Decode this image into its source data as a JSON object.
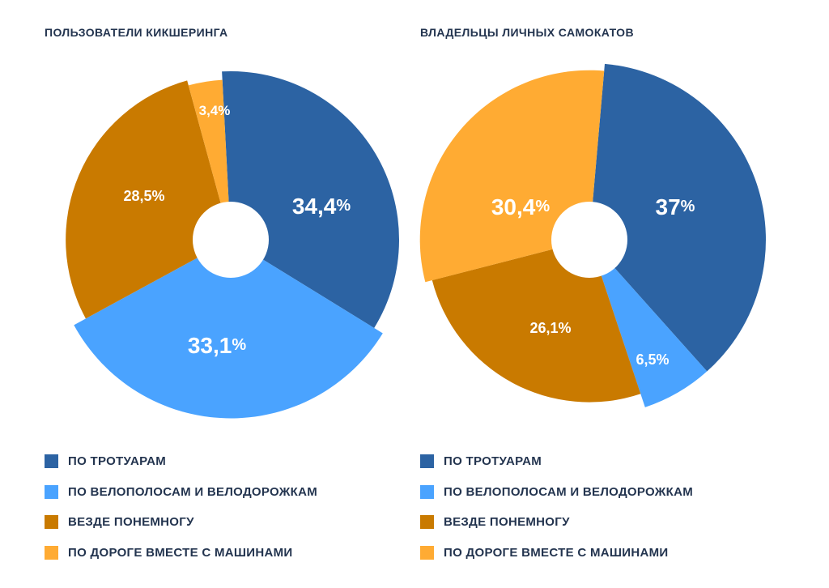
{
  "colors": {
    "sidewalk": "#2c63a3",
    "bikelane": "#4aa3ff",
    "everywhere": "#c97a00",
    "road": "#ffab33",
    "text": "#23344f"
  },
  "chart_data": [
    {
      "type": "pie",
      "title": "ПОЛЬЗОВАТЕЛИ КИКШЕРИНГА",
      "slices": [
        {
          "key": "sidewalk",
          "label": "ПО ТРОТУАРАМ",
          "value": 34.4,
          "number": "34,4",
          "unit": "%",
          "size": "large"
        },
        {
          "key": "bikelane",
          "label": "ПО ВЕЛОПОЛОСАМ И ВЕЛОДОРОЖКАМ",
          "value": 33.1,
          "number": "33,1",
          "unit": "%",
          "size": "large"
        },
        {
          "key": "everywhere",
          "label": "ВЕЗДЕ ПОНЕМНОГУ",
          "value": 28.5,
          "number": "28,5%",
          "unit": "",
          "size": "small"
        },
        {
          "key": "road",
          "label": "ПО ДОРОГЕ ВМЕСТЕ С МАШИНАМИ",
          "value": 3.4,
          "number": "3,4%",
          "unit": "",
          "size": "small"
        }
      ]
    },
    {
      "type": "pie",
      "title": "ВЛАДЕЛЬЦЫ ЛИЧНЫХ САМОКАТОВ",
      "slices": [
        {
          "key": "sidewalk",
          "label": "ПО ТРОТУАРАМ",
          "value": 37,
          "number": "37",
          "unit": "%",
          "size": "large"
        },
        {
          "key": "bikelane",
          "label": "ПО ВЕЛОПОЛОСАМ И ВЕЛОДОРОЖКАМ",
          "value": 6.5,
          "number": "6,5%",
          "unit": "",
          "size": "small"
        },
        {
          "key": "everywhere",
          "label": "ВЕЗДЕ ПОНЕМНОГУ",
          "value": 26.1,
          "number": "26,1%",
          "unit": "",
          "size": "small"
        },
        {
          "key": "road",
          "label": "ПО ДОРОГЕ ВМЕСТЕ С МАШИНАМИ",
          "value": 30.4,
          "number": "30,4",
          "unit": "%",
          "size": "large"
        }
      ]
    }
  ],
  "legend": {
    "left": [
      {
        "key": "sidewalk",
        "label": "ПО ТРОТУАРАМ"
      },
      {
        "key": "bikelane",
        "label": "ПО ВЕЛОПОЛОСАМ И ВЕЛОДОРОЖКАМ"
      },
      {
        "key": "everywhere",
        "label": "ВЕЗДЕ ПОНЕМНОГУ"
      },
      {
        "key": "road",
        "label": "ПО ДОРОГЕ ВМЕСТЕ С МАШИНАМИ"
      }
    ],
    "right": [
      {
        "key": "sidewalk",
        "label": "ПО ТРОТУАРАМ"
      },
      {
        "key": "bikelane",
        "label": "ПО ВЕЛОПОЛОСАМ И ВЕЛОДОРОЖКАМ"
      },
      {
        "key": "everywhere",
        "label": "ВЕЗДЕ ПОНЕМНОГУ"
      },
      {
        "key": "road",
        "label": "ПО ДОРОГЕ ВМЕСТЕ С МАШИНАМИ"
      }
    ]
  }
}
